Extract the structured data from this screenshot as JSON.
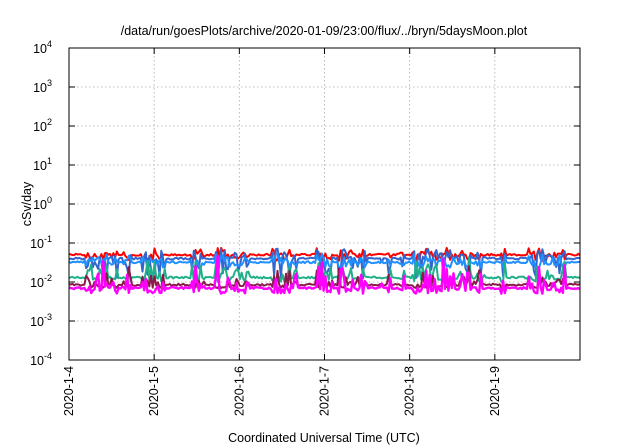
{
  "chart_data": {
    "type": "line",
    "title": "/data/run/goesPlots/archive/2020-01-09/23:00/flux/../bryn/5daysMoon.plot",
    "xlabel": "Coordinated Universal Time (UTC)",
    "ylabel": "cSv/day",
    "yscale": "log",
    "ylim": [
      0.0001,
      10000
    ],
    "y_ticks": [
      {
        "v": 0.0001,
        "base": "10",
        "exp": "-4"
      },
      {
        "v": 0.001,
        "base": "10",
        "exp": "-3"
      },
      {
        "v": 0.01,
        "base": "10",
        "exp": "-2"
      },
      {
        "v": 0.1,
        "base": "10",
        "exp": "-1"
      },
      {
        "v": 1,
        "base": "10",
        "exp": "0"
      },
      {
        "v": 10,
        "base": "10",
        "exp": "1"
      },
      {
        "v": 100,
        "base": "10",
        "exp": "2"
      },
      {
        "v": 1000,
        "base": "10",
        "exp": "3"
      },
      {
        "v": 10000,
        "base": "10",
        "exp": "4"
      }
    ],
    "xlim": [
      "2020-01-04",
      "2020-01-10"
    ],
    "x_ticks": [
      "2020-1-4",
      "2020-1-5",
      "2020-1-6",
      "2020-1-7",
      "2020-1-8",
      "2020-1-9"
    ],
    "grid": true,
    "series": [
      {
        "color": "#ff0000",
        "baseline": 0.05,
        "spike": 0.09,
        "dip": 0.035
      },
      {
        "color": "#3366cc",
        "baseline": 0.04,
        "spike": 0.08,
        "dip": 0.012
      },
      {
        "color": "#1e90ff",
        "baseline": 0.032,
        "spike": 0.06,
        "dip": 0.022
      },
      {
        "color": "#20b08a",
        "baseline": 0.013,
        "spike": 0.05,
        "dip": 0.01
      },
      {
        "color": "#8b1a4a",
        "baseline": 0.0085,
        "spike": 0.03,
        "dip": 0.007
      },
      {
        "color": "#ff00ff",
        "baseline": 0.007,
        "spike": 0.05,
        "dip": 0.005
      }
    ]
  }
}
